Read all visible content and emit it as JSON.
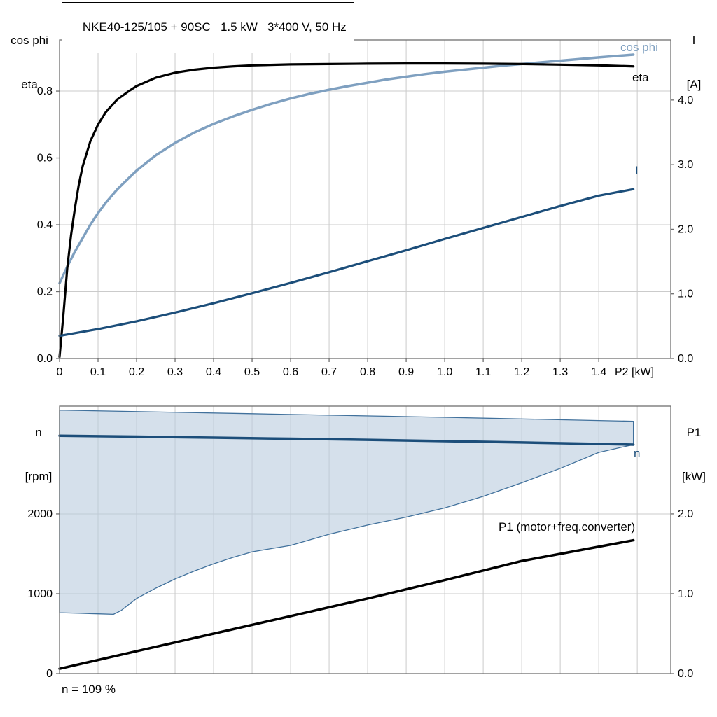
{
  "title": "NKE40-125/105 + 90SC   1.5 kW   3*400 V, 50 Hz",
  "colors": {
    "light_blue": "#7FA0C0",
    "dark_blue": "#1C4E7A",
    "black": "#000000",
    "grid": "#CBCBCB",
    "frame": "#6F6F6F",
    "area_fill": "#B9CBDD",
    "area_stroke": "#41719C"
  },
  "top_chart": {
    "left_axis_line1": "cos phi",
    "left_axis_line2": "eta",
    "right_axis_line1": "I",
    "right_axis_line2": "[A]",
    "cos_phi_label": "cos phi",
    "eta_label": "eta",
    "current_label": "I"
  },
  "bottom_chart": {
    "left_axis_line1": "n",
    "left_axis_line2": "[rpm]",
    "right_axis_line1": "P1",
    "right_axis_line2": "[kW]",
    "n_label": "n",
    "p1_label": "P1 (motor+freq.converter)",
    "annotation": "n = 109 %"
  },
  "chart_data": [
    {
      "type": "line",
      "title": "NKE40-125/105 + 90SC   1.5 kW   3*400 V, 50 Hz",
      "xlabel": "P2 [kW]",
      "x_range": [
        0,
        1.587
      ],
      "grid_x": [
        0.1,
        0.2,
        0.3,
        0.4,
        0.5,
        0.6,
        0.7,
        0.8,
        0.9,
        1.0,
        1.1,
        1.2,
        1.3,
        1.4,
        1.5
      ],
      "x_ticks": [
        [
          0,
          "0"
        ],
        [
          0.1,
          "0.1"
        ],
        [
          0.2,
          "0.2"
        ],
        [
          0.3,
          "0.3"
        ],
        [
          0.4,
          "0.4"
        ],
        [
          0.5,
          "0.5"
        ],
        [
          0.6,
          "0.6"
        ],
        [
          0.7,
          "0.7"
        ],
        [
          0.8,
          "0.8"
        ],
        [
          0.9,
          "0.9"
        ],
        [
          1.0,
          "1.0"
        ],
        [
          1.1,
          "1.1"
        ],
        [
          1.2,
          "1.2"
        ],
        [
          1.3,
          "1.3"
        ],
        [
          1.4,
          "1.4"
        ]
      ],
      "left_axis": {
        "label": "cos phi / eta",
        "range": [
          0,
          0.953
        ],
        "ticks": [
          [
            0,
            "0.0"
          ],
          [
            0.2,
            "0.2"
          ],
          [
            0.4,
            "0.4"
          ],
          [
            0.6,
            "0.6"
          ],
          [
            0.8,
            "0.8"
          ]
        ]
      },
      "right_axis": {
        "label": "I [A]",
        "range": [
          0,
          4.93
        ],
        "ticks": [
          [
            0,
            "0.0"
          ],
          [
            1,
            "1.0"
          ],
          [
            2,
            "2.0"
          ],
          [
            3,
            "3.0"
          ],
          [
            4,
            "4.0"
          ]
        ]
      },
      "series": [
        {
          "name": "cos phi",
          "axis": "left",
          "color": "light_blue",
          "width": 3.5,
          "points": [
            [
              0,
              0.225
            ],
            [
              0.02,
              0.275
            ],
            [
              0.04,
              0.32
            ],
            [
              0.06,
              0.36
            ],
            [
              0.08,
              0.4
            ],
            [
              0.1,
              0.435
            ],
            [
              0.12,
              0.466
            ],
            [
              0.15,
              0.506
            ],
            [
              0.18,
              0.54
            ],
            [
              0.2,
              0.562
            ],
            [
              0.25,
              0.608
            ],
            [
              0.3,
              0.645
            ],
            [
              0.35,
              0.676
            ],
            [
              0.4,
              0.702
            ],
            [
              0.45,
              0.724
            ],
            [
              0.5,
              0.744
            ],
            [
              0.55,
              0.762
            ],
            [
              0.6,
              0.778
            ],
            [
              0.65,
              0.792
            ],
            [
              0.7,
              0.804
            ],
            [
              0.75,
              0.815
            ],
            [
              0.8,
              0.825
            ],
            [
              0.85,
              0.835
            ],
            [
              0.9,
              0.843
            ],
            [
              0.95,
              0.851
            ],
            [
              1.0,
              0.858
            ],
            [
              1.05,
              0.864
            ],
            [
              1.1,
              0.87
            ],
            [
              1.15,
              0.876
            ],
            [
              1.2,
              0.881
            ],
            [
              1.25,
              0.886
            ],
            [
              1.3,
              0.891
            ],
            [
              1.35,
              0.896
            ],
            [
              1.4,
              0.901
            ],
            [
              1.49,
              0.909
            ]
          ]
        },
        {
          "name": "eta",
          "axis": "left",
          "color": "black",
          "width": 3.2,
          "points": [
            [
              0,
              0.005
            ],
            [
              0.01,
              0.13
            ],
            [
              0.02,
              0.27
            ],
            [
              0.03,
              0.37
            ],
            [
              0.04,
              0.45
            ],
            [
              0.05,
              0.52
            ],
            [
              0.06,
              0.575
            ],
            [
              0.08,
              0.65
            ],
            [
              0.1,
              0.7
            ],
            [
              0.12,
              0.737
            ],
            [
              0.15,
              0.775
            ],
            [
              0.18,
              0.8
            ],
            [
              0.2,
              0.815
            ],
            [
              0.25,
              0.84
            ],
            [
              0.3,
              0.855
            ],
            [
              0.35,
              0.864
            ],
            [
              0.4,
              0.87
            ],
            [
              0.45,
              0.874
            ],
            [
              0.5,
              0.877
            ],
            [
              0.6,
              0.88
            ],
            [
              0.7,
              0.881
            ],
            [
              0.8,
              0.882
            ],
            [
              0.9,
              0.8825
            ],
            [
              1.0,
              0.8825
            ],
            [
              1.1,
              0.882
            ],
            [
              1.2,
              0.881
            ],
            [
              1.3,
              0.879
            ],
            [
              1.4,
              0.877
            ],
            [
              1.49,
              0.874
            ]
          ]
        },
        {
          "name": "I",
          "axis": "right",
          "color": "dark_blue",
          "width": 3.2,
          "points": [
            [
              0,
              0.35
            ],
            [
              0.1,
              0.455
            ],
            [
              0.2,
              0.575
            ],
            [
              0.3,
              0.71
            ],
            [
              0.4,
              0.855
            ],
            [
              0.5,
              1.01
            ],
            [
              0.6,
              1.17
            ],
            [
              0.7,
              1.335
            ],
            [
              0.8,
              1.505
            ],
            [
              0.9,
              1.675
            ],
            [
              1.0,
              1.85
            ],
            [
              1.1,
              2.02
            ],
            [
              1.2,
              2.19
            ],
            [
              1.3,
              2.36
            ],
            [
              1.4,
              2.52
            ],
            [
              1.49,
              2.62
            ]
          ]
        }
      ]
    },
    {
      "type": "line",
      "title": "",
      "xlabel": "",
      "x_range": [
        0,
        1.587
      ],
      "grid_x": [
        0.1,
        0.2,
        0.3,
        0.4,
        0.5,
        0.6,
        0.7,
        0.8,
        0.9,
        1.0,
        1.1,
        1.2,
        1.3,
        1.4,
        1.5
      ],
      "left_axis": {
        "label": "n [rpm]",
        "range": [
          0,
          3350
        ],
        "ticks": [
          [
            0,
            "0"
          ],
          [
            1000,
            "1000"
          ],
          [
            2000,
            "2000"
          ]
        ]
      },
      "right_axis": {
        "label": "P1 [kW]",
        "range": [
          0,
          3.35
        ],
        "ticks": [
          [
            0,
            "0.0"
          ],
          [
            1,
            "1.0"
          ],
          [
            2,
            "2.0"
          ]
        ]
      },
      "area": {
        "name": "speed-control-operating-range",
        "upper": [
          [
            0,
            3300
          ],
          [
            0.5,
            3255
          ],
          [
            1.0,
            3210
          ],
          [
            1.49,
            3160
          ]
        ],
        "lower": [
          [
            0,
            762
          ],
          [
            0.05,
            755
          ],
          [
            0.1,
            748
          ],
          [
            0.14,
            742
          ],
          [
            0.16,
            790
          ],
          [
            0.2,
            940
          ],
          [
            0.25,
            1070
          ],
          [
            0.3,
            1185
          ],
          [
            0.35,
            1285
          ],
          [
            0.4,
            1375
          ],
          [
            0.45,
            1455
          ],
          [
            0.5,
            1525
          ],
          [
            0.55,
            1565
          ],
          [
            0.6,
            1605
          ],
          [
            0.7,
            1745
          ],
          [
            0.8,
            1860
          ],
          [
            0.9,
            1960
          ],
          [
            1.0,
            2075
          ],
          [
            1.1,
            2220
          ],
          [
            1.2,
            2390
          ],
          [
            1.3,
            2570
          ],
          [
            1.4,
            2770
          ],
          [
            1.49,
            2868
          ]
        ]
      },
      "series": [
        {
          "name": "n",
          "axis": "left",
          "color": "dark_blue",
          "width": 3.5,
          "points": [
            [
              0,
              2980
            ],
            [
              0.2,
              2968
            ],
            [
              0.4,
              2955
            ],
            [
              0.6,
              2942
            ],
            [
              0.8,
              2928
            ],
            [
              1.0,
              2912
            ],
            [
              1.2,
              2895
            ],
            [
              1.49,
              2868
            ]
          ]
        },
        {
          "name": "P1 (motor+freq.converter)",
          "axis": "right",
          "color": "black",
          "width": 3.5,
          "points": [
            [
              0,
              0.06
            ],
            [
              0.2,
              0.28
            ],
            [
              0.4,
              0.5
            ],
            [
              0.6,
              0.72
            ],
            [
              0.8,
              0.94
            ],
            [
              1.0,
              1.17
            ],
            [
              1.2,
              1.41
            ],
            [
              1.49,
              1.67
            ]
          ]
        }
      ],
      "annotation": "n = 109 %"
    }
  ]
}
